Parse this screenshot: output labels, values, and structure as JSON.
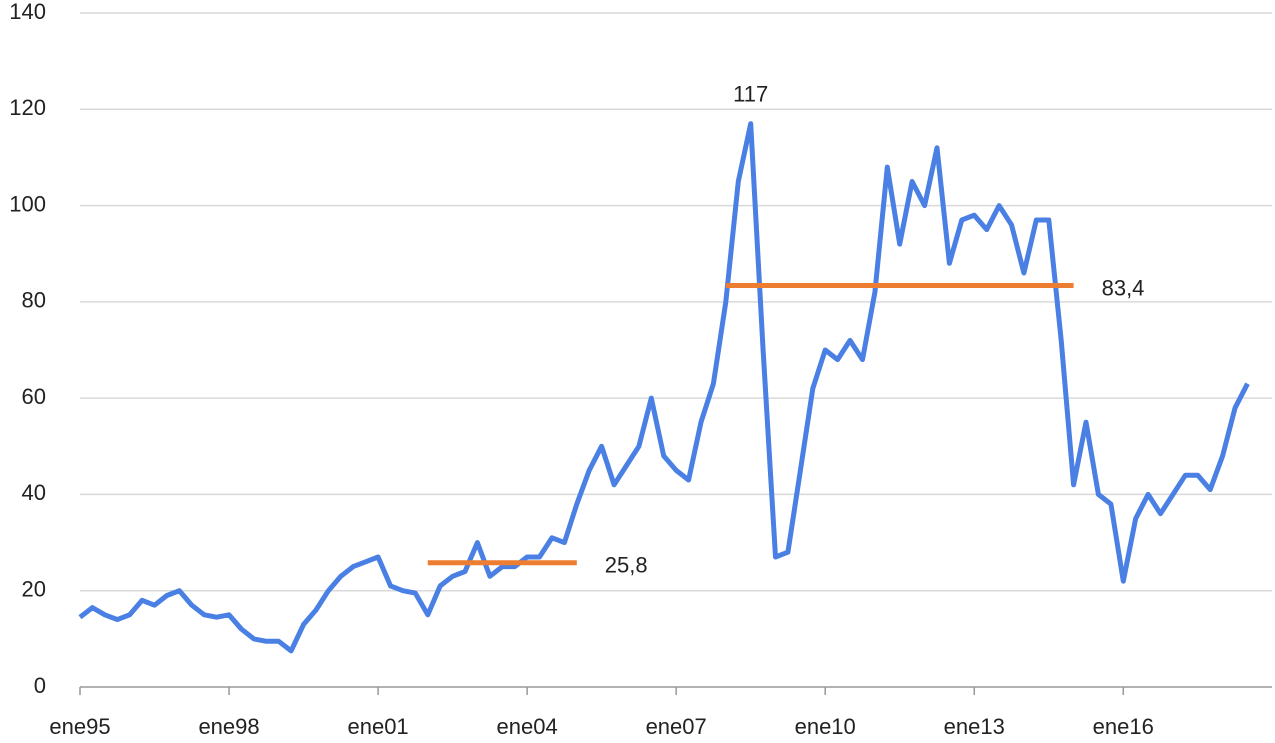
{
  "chart_data": {
    "type": "line",
    "categories": [
      "ene95",
      null,
      null,
      null,
      null,
      null,
      null,
      null,
      null,
      null,
      null,
      null,
      "ene98",
      null,
      null,
      null,
      null,
      null,
      null,
      null,
      null,
      null,
      null,
      null,
      "ene01",
      null,
      null,
      null,
      null,
      null,
      null,
      null,
      null,
      null,
      null,
      null,
      "ene04",
      null,
      null,
      null,
      null,
      null,
      null,
      null,
      null,
      null,
      null,
      null,
      "ene07",
      null,
      null,
      null,
      null,
      null,
      null,
      null,
      null,
      null,
      null,
      null,
      "ene10",
      null,
      null,
      null,
      null,
      null,
      null,
      null,
      null,
      null,
      null,
      null,
      "ene13",
      null,
      null,
      null,
      null,
      null,
      null,
      null,
      null,
      null,
      null,
      null,
      "ene16",
      null,
      null,
      null,
      null,
      null,
      null,
      null,
      null,
      null,
      null
    ],
    "series": [
      {
        "color": "#4a7fe3",
        "values": [
          14.5,
          16.5,
          15,
          14,
          15,
          18,
          17,
          19,
          20,
          17,
          15,
          14.5,
          15,
          12,
          10,
          9.5,
          9.5,
          7.5,
          13,
          16,
          20,
          23,
          25,
          26,
          27,
          21,
          20,
          19.5,
          15,
          21,
          23,
          24,
          30,
          23,
          25,
          25,
          27,
          27,
          31,
          30,
          38,
          45,
          50,
          42,
          46,
          50,
          60,
          48,
          45,
          43,
          55,
          63,
          80,
          105,
          117,
          70,
          27,
          28,
          45,
          62,
          70,
          68,
          72,
          68,
          82,
          108,
          92,
          105,
          100,
          112,
          88,
          97,
          98,
          95,
          100,
          96,
          86,
          97,
          97,
          72,
          42,
          55,
          40,
          38,
          22,
          35,
          40,
          36,
          40,
          44,
          44,
          41,
          48,
          58,
          63
        ]
      }
    ],
    "ylim": [
      0,
      140
    ],
    "yticks": [
      0,
      20,
      40,
      60,
      80,
      100,
      120,
      140
    ],
    "grid": true,
    "reference_lines": [
      {
        "value": 25.8,
        "label": "25,8",
        "color": "#ed7d31",
        "span": [
          28,
          40
        ]
      },
      {
        "value": 83.4,
        "label": "83,4",
        "color": "#ed7d31",
        "span": [
          52,
          80
        ]
      }
    ],
    "annotations": [
      {
        "value": 117,
        "category_index": 54
      }
    ]
  }
}
